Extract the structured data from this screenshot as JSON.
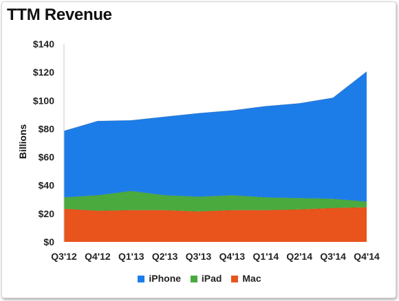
{
  "chart_data": {
    "type": "area",
    "title": "TTM Revenue",
    "ylabel": "Billions",
    "xlabel": "",
    "categories": [
      "Q3'12",
      "Q4'12",
      "Q1'13",
      "Q2'13",
      "Q3'13",
      "Q4'13",
      "Q1'14",
      "Q2'14",
      "Q3'14",
      "Q4'14"
    ],
    "ylim": [
      0,
      140
    ],
    "y_ticks": [
      0,
      20,
      40,
      60,
      80,
      100,
      120,
      140
    ],
    "y_tick_labels": [
      "$0",
      "$20",
      "$40",
      "$60",
      "$80",
      "$100",
      "$120",
      "$140"
    ],
    "stacked": true,
    "grid": false,
    "legend_position": "bottom",
    "series": [
      {
        "name": "Mac",
        "color": "#e8541c",
        "values": [
          23.5,
          22.0,
          22.5,
          22.5,
          21.5,
          22.5,
          22.5,
          23.0,
          24.0,
          24.5
        ]
      },
      {
        "name": "iPad",
        "color": "#4aaa3d",
        "values": [
          8.0,
          11.0,
          13.5,
          10.5,
          10.5,
          10.5,
          9.0,
          8.0,
          6.5,
          4.0
        ]
      },
      {
        "name": "iPhone",
        "color": "#1d7de8",
        "values": [
          47.0,
          52.5,
          50.0,
          55.5,
          59.0,
          60.0,
          64.5,
          67.0,
          71.5,
          92.0
        ]
      }
    ],
    "legend_order": [
      "iPhone",
      "iPad",
      "Mac"
    ]
  }
}
